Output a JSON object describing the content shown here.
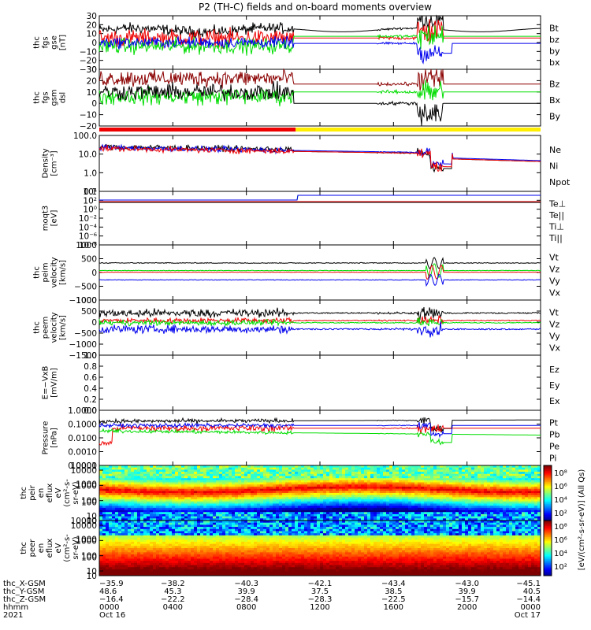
{
  "title": "P2 (TH-C) fields and on-board moments overview",
  "colors": {
    "black": "#000000",
    "red": "#ee0000",
    "darkred": "#8b0000",
    "green": "#00dd00",
    "blue": "#0000ee",
    "yellow": "#ffee00"
  },
  "chart_data": [
    {
      "type": "line",
      "panel_label": [
        "thc",
        "fgs",
        "gse",
        "[nT]"
      ],
      "ylim": [
        -30,
        30
      ],
      "ticks": [
        "30",
        "20",
        "10",
        "0",
        "−10",
        "−20",
        "−30"
      ],
      "tick_values": [
        30,
        20,
        10,
        0,
        -10,
        -20,
        -30
      ],
      "legend": [
        {
          "text": "Bt",
          "color": "#000000"
        },
        {
          "text": "bz",
          "color": "#ee0000"
        },
        {
          "text": "by",
          "color": "#00dd00"
        },
        {
          "text": "bx",
          "color": "#0000ee"
        }
      ]
    },
    {
      "type": "line",
      "panel_label": [
        "thc",
        "fgs",
        "gsm",
        "dsl"
      ],
      "ylim": [
        -20,
        30
      ],
      "ticks": [
        "30",
        "20",
        "10",
        "0",
        "−10",
        "−20"
      ],
      "tick_values": [
        30,
        20,
        10,
        0,
        -10,
        -20
      ],
      "legend": [
        {
          "text": "Bz",
          "color": "#8b0000"
        },
        {
          "text": "Bx",
          "color": "#000000"
        },
        {
          "text": "By",
          "color": "#00dd00"
        }
      ]
    },
    {
      "type": "line",
      "panel_label": [
        "Density",
        "[cm⁻³]"
      ],
      "ylim": [
        0.1,
        100
      ],
      "log": true,
      "ticks": [
        "100.0",
        "10.0",
        "1.0",
        "0.1"
      ],
      "tick_values": [
        100,
        10,
        1,
        0.1
      ],
      "legend": [
        {
          "text": "Ne",
          "color": "#ee0000"
        },
        {
          "text": "Ni",
          "color": "#000000"
        },
        {
          "text": "Npot",
          "color": "#0000ee"
        }
      ]
    },
    {
      "type": "line",
      "panel_label": [
        "moqt3",
        "[eV]"
      ],
      "log": true,
      "ticks": [
        "10⁴",
        "10²",
        "10⁰",
        "10⁻²",
        "10⁻⁴",
        "10⁻⁶",
        "10⁻⁸"
      ],
      "legend": [
        {
          "text": "Te⊥",
          "color": "#ee0000"
        },
        {
          "text": "Te||",
          "color": "#000000"
        },
        {
          "text": "Ti⊥",
          "color": "#0000ee"
        },
        {
          "text": "Ti||",
          "color": "#00dd00"
        }
      ]
    },
    {
      "type": "line",
      "panel_label": [
        "thc",
        "peim",
        "velocity",
        "[km/s]"
      ],
      "ylim": [
        -1000,
        1000
      ],
      "ticks": [
        "1000",
        "500",
        "0",
        "−500",
        "−1000"
      ],
      "tick_values": [
        1000,
        500,
        0,
        -500,
        -1000
      ],
      "legend": [
        {
          "text": "Vt",
          "color": "#000000"
        },
        {
          "text": "Vz",
          "color": "#ee0000"
        },
        {
          "text": "Vy",
          "color": "#00dd00"
        },
        {
          "text": "Vx",
          "color": "#0000ee"
        }
      ]
    },
    {
      "type": "line",
      "panel_label": [
        "thc",
        "peem",
        "velocity",
        "[km/s]"
      ],
      "ylim": [
        -1500,
        1000
      ],
      "ticks": [
        "1000",
        "500",
        "0",
        "−500",
        "−1000",
        "−1500"
      ],
      "tick_values": [
        1000,
        500,
        0,
        -500,
        -1000,
        -1500
      ],
      "legend": [
        {
          "text": "Vt",
          "color": "#000000"
        },
        {
          "text": "Vz",
          "color": "#ee0000"
        },
        {
          "text": "Vy",
          "color": "#00dd00"
        },
        {
          "text": "Vx",
          "color": "#0000ee"
        }
      ]
    },
    {
      "type": "line",
      "panel_label": [
        "E=−VxB",
        "[mV/m]"
      ],
      "ylim": [
        0,
        1
      ],
      "ticks": [
        "1.0",
        "0.8",
        "0.6",
        "0.4",
        "0.2",
        "0.0"
      ],
      "tick_values": [
        1,
        0.8,
        0.6,
        0.4,
        0.2,
        0
      ],
      "legend": [
        {
          "text": "Ez",
          "color": "#ee0000"
        },
        {
          "text": "Ey",
          "color": "#00dd00"
        },
        {
          "text": "Ex",
          "color": "#0000ee"
        }
      ]
    },
    {
      "type": "line",
      "panel_label": [
        "Pressure",
        "[nPa]"
      ],
      "ylim": [
        0.0001,
        1
      ],
      "log": true,
      "ticks": [
        "1.0000",
        "0.1000",
        "0.0100",
        "0.0010",
        "0.0001"
      ],
      "tick_values": [
        1,
        0.1,
        0.01,
        0.001,
        0.0001
      ],
      "legend": [
        {
          "text": "Pt",
          "color": "#000000"
        },
        {
          "text": "Pb",
          "color": "#ee0000"
        },
        {
          "text": "Pe",
          "color": "#00dd00"
        },
        {
          "text": "Pi",
          "color": "#0000ee"
        }
      ]
    },
    {
      "type": "heatmap",
      "panel_label": [
        "thc",
        "peir",
        "en",
        "eflux",
        "eV",
        "(cm²-s-",
        "sr-eV)"
      ],
      "ticks": [
        "10000",
        "1000",
        "100",
        "10"
      ],
      "tick_values": [
        10000,
        1000,
        100,
        10
      ]
    },
    {
      "type": "heatmap",
      "panel_label": [
        "thc",
        "peer",
        "en",
        "eflux",
        "eV",
        "(cm²-s-",
        "sr-eV)"
      ],
      "ticks": [
        "10000",
        "1000",
        "100",
        "10"
      ],
      "tick_values": [
        10000,
        1000,
        100,
        10
      ]
    }
  ],
  "colorbar": {
    "ticks": [
      "10⁸",
      "10⁶",
      "10⁴",
      "10²",
      "10⁸",
      "10⁶",
      "10⁴",
      "10²"
    ],
    "label": "[eV/(cm²-s-sr-eV)]  (All Qs)"
  },
  "xaxis": {
    "row_labels": [
      "thc_X-GSM",
      "thc_Y-GSM",
      "thc_Z-GSM",
      "hhmm",
      "2021"
    ],
    "columns": [
      {
        "x": "−35.9",
        "y": "48.6",
        "z": "−16.4",
        "hhmm": "0000",
        "date": "Oct 16"
      },
      {
        "x": "−38.2",
        "y": "45.3",
        "z": "−22.2",
        "hhmm": "0400",
        "date": ""
      },
      {
        "x": "−40.3",
        "y": "39.9",
        "z": "−28.4",
        "hhmm": "0800",
        "date": ""
      },
      {
        "x": "−42.1",
        "y": "37.5",
        "z": "−28.3",
        "hhmm": "1200",
        "date": ""
      },
      {
        "x": "−43.4",
        "y": "38.5",
        "z": "−22.5",
        "hhmm": "1600",
        "date": ""
      },
      {
        "x": "−43.0",
        "y": "39.9",
        "z": "−15.7",
        "hhmm": "2000",
        "date": ""
      },
      {
        "x": "−45.1",
        "y": "40.5",
        "z": "−14.4",
        "hhmm": "0000",
        "date": "Oct 17"
      }
    ]
  }
}
